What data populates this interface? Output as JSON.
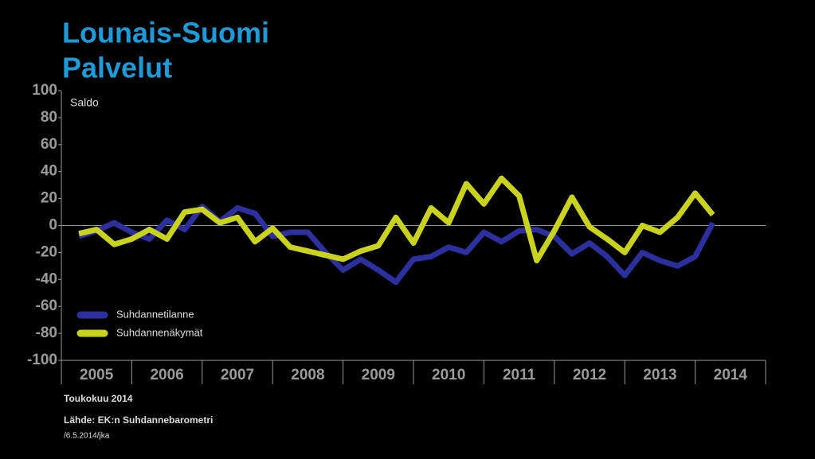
{
  "chart_data": {
    "type": "line",
    "title": [
      "Lounais-Suomi",
      "Palvelut"
    ],
    "y_label": "Saldo",
    "x": [
      2005.25,
      2005.5,
      2005.75,
      2006,
      2006.25,
      2006.5,
      2006.75,
      2007,
      2007.25,
      2007.5,
      2007.75,
      2008,
      2008.25,
      2008.5,
      2008.75,
      2009,
      2009.25,
      2009.5,
      2009.75,
      2010,
      2010.25,
      2010.5,
      2010.75,
      2011,
      2011.25,
      2011.5,
      2011.75,
      2012,
      2012.25,
      2012.5,
      2012.75,
      2013,
      2013.25,
      2013.5,
      2013.75,
      2014,
      2014.25
    ],
    "series": [
      {
        "name": "Suhdannetilanne",
        "color": "#2c2f9c",
        "values": [
          -8,
          -4,
          2,
          -5,
          -10,
          4,
          -3,
          14,
          3,
          13,
          9,
          -8,
          -5,
          -5,
          -20,
          -33,
          -25,
          -33,
          -42,
          -25,
          -23,
          -16,
          -20,
          -5,
          -12,
          -4,
          -3,
          -8,
          -21,
          -13,
          -23,
          -37,
          -20,
          -26,
          -30,
          -23,
          2
        ]
      },
      {
        "name": "Suhdannenäkymät",
        "color": "#c9d31e",
        "values": [
          -6,
          -3,
          -14,
          -10,
          -3,
          -10,
          10,
          12,
          2,
          6,
          -12,
          -2,
          -16,
          -19,
          -22,
          -25,
          -19,
          -15,
          6,
          -13,
          13,
          2,
          31,
          16,
          35,
          22,
          -26,
          -4,
          21,
          -1,
          -10,
          -20,
          0,
          -5,
          6,
          24,
          8
        ]
      }
    ],
    "xlim": [
      2005,
      2015
    ],
    "xticks": [
      2005,
      2006,
      2007,
      2008,
      2009,
      2010,
      2011,
      2012,
      2013,
      2014
    ],
    "ylim": [
      -100,
      100
    ],
    "yticks": [
      -100,
      -80,
      -60,
      -40,
      -20,
      0,
      20,
      40,
      60,
      80,
      100
    ],
    "legend": "lower-left",
    "notes": [
      "Toukokuu 2014",
      "Lähde: EK:n Suhdannebarometri",
      "/6.5.2014/jka"
    ]
  }
}
